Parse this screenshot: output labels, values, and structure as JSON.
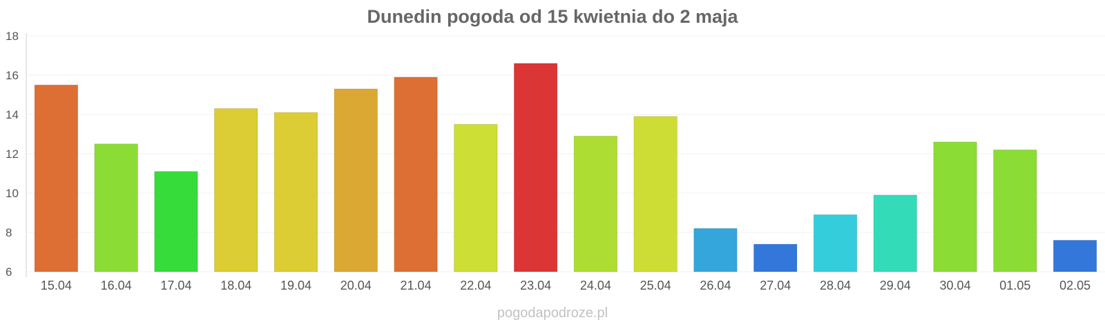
{
  "chart_data": {
    "type": "bar",
    "title": "Dunedin pogoda od 15 kwietnia do 2 maja",
    "xlabel": "",
    "ylabel": "",
    "ylim": [
      6,
      18
    ],
    "yticks": [
      6,
      8,
      10,
      12,
      14,
      16,
      18
    ],
    "grid": true,
    "legend": "none",
    "categories": [
      "15.04",
      "16.04",
      "17.04",
      "18.04",
      "19.04",
      "20.04",
      "21.04",
      "22.04",
      "23.04",
      "24.04",
      "25.04",
      "26.04",
      "27.04",
      "28.04",
      "29.04",
      "30.04",
      "01.05",
      "02.05"
    ],
    "values": [
      15.5,
      12.5,
      11.1,
      14.3,
      14.1,
      15.3,
      15.9,
      13.5,
      16.6,
      12.9,
      13.9,
      8.2,
      7.4,
      8.9,
      9.9,
      12.6,
      12.2,
      7.6
    ],
    "colors": [
      "#dd6e34",
      "#8cdc36",
      "#36dc3a",
      "#dbcd33",
      "#dbcd33",
      "#dca834",
      "#dd6e34",
      "#cdde35",
      "#db3535",
      "#addd33",
      "#cddd35",
      "#34a6db",
      "#3477db",
      "#34cddb",
      "#34dbb8",
      "#8cdc36",
      "#8cdc36",
      "#3477db"
    ]
  },
  "watermark": "pogodapodroze.pl"
}
